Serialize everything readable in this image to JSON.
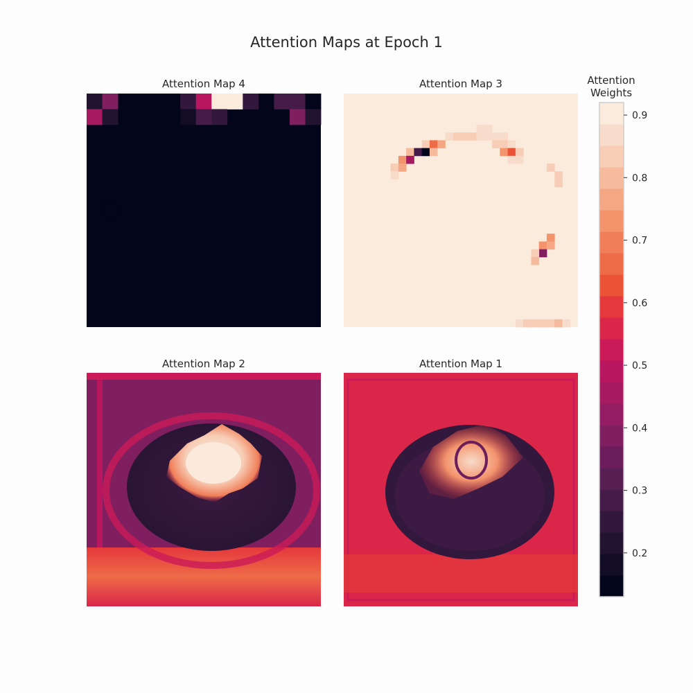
{
  "figure": {
    "title": "Attention Maps at Epoch 1"
  },
  "colorbar": {
    "label_line1": "Attention",
    "label_line2": "Weights",
    "ticks": [
      "0.2",
      "0.3",
      "0.4",
      "0.5",
      "0.6",
      "0.7",
      "0.8",
      "0.9"
    ],
    "colors": [
      "#03051a",
      "#120d25",
      "#221331",
      "#33183d",
      "#451c48",
      "#581f53",
      "#6b1e5b",
      "#7f1f60",
      "#931c63",
      "#a61a62",
      "#b8175f",
      "#ca1a58",
      "#d92649",
      "#e4383c",
      "#ea5336",
      "#ee6b48",
      "#f07f59",
      "#f3946d",
      "#f5a783",
      "#f6ba9c",
      "#f7cdb6",
      "#f8dccb",
      "#faebdd"
    ]
  },
  "chart_data": {
    "type": "heatmap",
    "title": "Attention Maps at Epoch 1",
    "colorbar_label": "Attention Weights",
    "vmin": 0.13,
    "vmax": 0.92,
    "colormap": "rocket (23 discrete levels)",
    "grid": false,
    "legend_position": "right",
    "panels": [
      {
        "title": "Attention Map 4",
        "grid_size": 15,
        "background_value": 0.13,
        "cells": [
          [
            0,
            0,
            0.2
          ],
          [
            0,
            1,
            0.39
          ],
          [
            0,
            6,
            0.26
          ],
          [
            0,
            7,
            0.5
          ],
          [
            0,
            8,
            0.92
          ],
          [
            0,
            9,
            0.92
          ],
          [
            0,
            10,
            0.26
          ],
          [
            0,
            12,
            0.27
          ],
          [
            0,
            13,
            0.27
          ],
          [
            0,
            14,
            0.15
          ],
          [
            1,
            0,
            0.45
          ],
          [
            1,
            1,
            0.21
          ],
          [
            1,
            6,
            0.19
          ],
          [
            1,
            7,
            0.27
          ],
          [
            1,
            8,
            0.25
          ],
          [
            1,
            13,
            0.38
          ],
          [
            1,
            14,
            0.2
          ],
          [
            7,
            1,
            0.16
          ]
        ]
      },
      {
        "title": "Attention Map 3",
        "grid_size": 30,
        "background_value": 0.91,
        "cells": [
          [
            4,
            17,
            0.87
          ],
          [
            4,
            18,
            0.87
          ],
          [
            5,
            13,
            0.87
          ],
          [
            5,
            14,
            0.84
          ],
          [
            5,
            15,
            0.82
          ],
          [
            5,
            16,
            0.82
          ],
          [
            5,
            17,
            0.86
          ],
          [
            5,
            18,
            0.87
          ],
          [
            5,
            19,
            0.87
          ],
          [
            5,
            20,
            0.87
          ],
          [
            6,
            10,
            0.83
          ],
          [
            6,
            11,
            0.67
          ],
          [
            6,
            12,
            0.75
          ],
          [
            6,
            19,
            0.83
          ],
          [
            6,
            20,
            0.82
          ],
          [
            6,
            21,
            0.86
          ],
          [
            7,
            8,
            0.8
          ],
          [
            7,
            9,
            0.3
          ],
          [
            7,
            10,
            0.13
          ],
          [
            7,
            11,
            0.8
          ],
          [
            7,
            20,
            0.74
          ],
          [
            7,
            21,
            0.62
          ],
          [
            7,
            22,
            0.85
          ],
          [
            8,
            7,
            0.72
          ],
          [
            8,
            8,
            0.45
          ],
          [
            8,
            21,
            0.86
          ],
          [
            8,
            22,
            0.86
          ],
          [
            9,
            6,
            0.83
          ],
          [
            9,
            7,
            0.77
          ],
          [
            9,
            26,
            0.84
          ],
          [
            10,
            6,
            0.86
          ],
          [
            10,
            27,
            0.83
          ],
          [
            11,
            27,
            0.83
          ],
          [
            18,
            26,
            0.74
          ],
          [
            19,
            25,
            0.73
          ],
          [
            19,
            26,
            0.77
          ],
          [
            20,
            25,
            0.4
          ],
          [
            20,
            24,
            0.84
          ],
          [
            21,
            24,
            0.81
          ],
          [
            29,
            22,
            0.88
          ],
          [
            29,
            23,
            0.85
          ],
          [
            29,
            24,
            0.82
          ],
          [
            29,
            25,
            0.82
          ],
          [
            29,
            26,
            0.82
          ],
          [
            29,
            27,
            0.8
          ],
          [
            29,
            28,
            0.86
          ]
        ]
      },
      {
        "title": "Attention Map 2",
        "description_value_range": [
          0.13,
          0.92
        ]
      },
      {
        "title": "Attention Map 1",
        "description_value_range": [
          0.13,
          0.92
        ]
      }
    ]
  }
}
